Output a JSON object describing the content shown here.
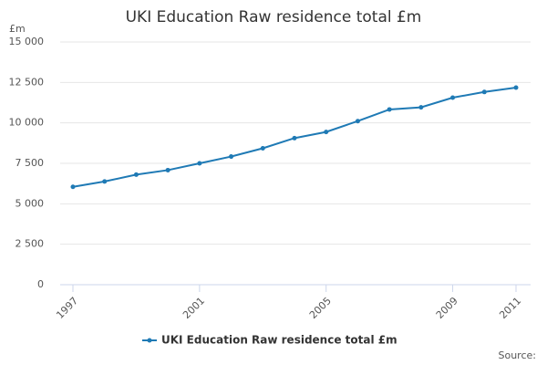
{
  "chart_data": {
    "type": "line",
    "title": "UKI Education Raw residence total £m",
    "y_label": "£m",
    "source": "Source:",
    "x": [
      1997,
      1998,
      1999,
      2000,
      2001,
      2002,
      2003,
      2004,
      2005,
      2006,
      2007,
      2008,
      2009,
      2010,
      2011
    ],
    "series": [
      {
        "name": "UKI Education Raw residence total £m",
        "color": "#1f7ab5",
        "values": [
          6050,
          6380,
          6800,
          7080,
          7500,
          7920,
          8430,
          9060,
          9440,
          10110,
          10830,
          10960,
          11560,
          11910,
          12180
        ]
      }
    ],
    "xlim": [
      1997,
      2011
    ],
    "xticks": [
      1997,
      2001,
      2005,
      2009,
      2011
    ],
    "ylim": [
      0,
      15000
    ],
    "yticks": [
      0,
      {
        "value": 2500,
        "label": "2 500"
      },
      {
        "value": 5000,
        "label": "5 000"
      },
      {
        "value": 7500,
        "label": "7 500"
      },
      {
        "value": 10000,
        "label": "10 000"
      },
      {
        "value": 12500,
        "label": "12 500"
      },
      {
        "value": 15000,
        "label": "15 000"
      }
    ],
    "grid": true
  }
}
